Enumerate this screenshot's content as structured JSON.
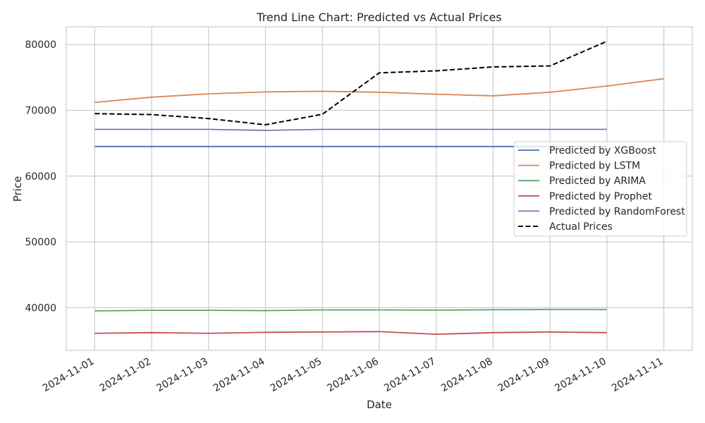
{
  "chart_data": {
    "type": "line",
    "title": "Trend Line Chart: Predicted vs Actual Prices",
    "xlabel": "Date",
    "ylabel": "Price",
    "x": [
      "2024-11-01",
      "2024-11-02",
      "2024-11-03",
      "2024-11-04",
      "2024-11-05",
      "2024-11-06",
      "2024-11-07",
      "2024-11-08",
      "2024-11-09",
      "2024-11-10",
      "2024-11-11"
    ],
    "y_ticks": [
      40000,
      50000,
      60000,
      70000,
      80000
    ],
    "ylim": [
      33500,
      82700
    ],
    "xlim": [
      "2024-10-31T12:00",
      "2024-11-11T12:00"
    ],
    "grid": true,
    "legend_position": "center-right",
    "series": [
      {
        "name": "Predicted by XGBoost",
        "color": "#4c72b0",
        "dash": "solid",
        "values": [
          64500,
          64500,
          64500,
          64500,
          64500,
          64500,
          64500,
          64500,
          64500,
          64500,
          null
        ]
      },
      {
        "name": "Predicted by LSTM",
        "color": "#dd8452",
        "dash": "solid",
        "values": [
          71200,
          72000,
          72500,
          72800,
          72900,
          72750,
          72450,
          72200,
          72750,
          73700,
          74800
        ]
      },
      {
        "name": "Predicted by ARIMA",
        "color": "#55a868",
        "dash": "solid",
        "values": [
          39500,
          39600,
          39600,
          39550,
          39650,
          39650,
          39620,
          39680,
          39720,
          39700,
          null
        ]
      },
      {
        "name": "Predicted by Prophet",
        "color": "#c44e52",
        "dash": "solid",
        "values": [
          36100,
          36200,
          36100,
          36250,
          36300,
          36350,
          35950,
          36200,
          36300,
          36200,
          null
        ]
      },
      {
        "name": "Predicted by RandomForest",
        "color": "#8172b3",
        "dash": "solid",
        "values": [
          67100,
          67100,
          67100,
          66950,
          67100,
          67100,
          67100,
          67100,
          67100,
          67100,
          null
        ]
      },
      {
        "name": "Actual Prices",
        "color": "#000000",
        "dash": "dashed",
        "values": [
          69500,
          69350,
          68750,
          67800,
          69400,
          75700,
          76000,
          76600,
          76750,
          80500,
          null
        ]
      }
    ]
  }
}
